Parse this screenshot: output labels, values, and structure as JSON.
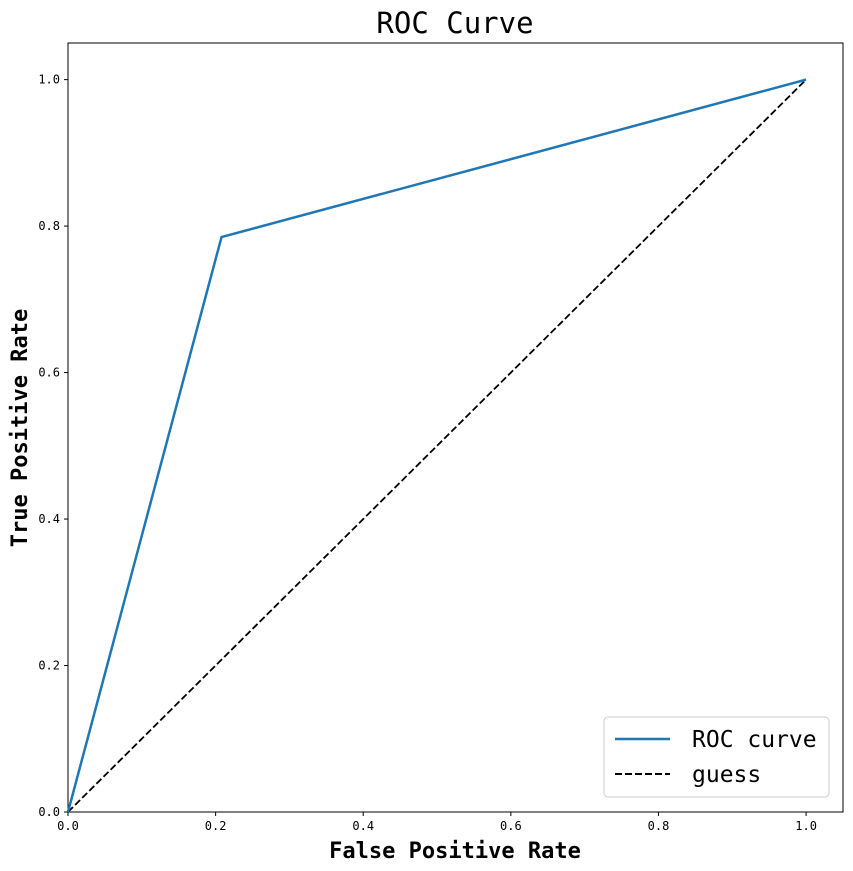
{
  "chart_data": {
    "type": "line",
    "title": "ROC Curve",
    "xlabel": "False Positive Rate",
    "ylabel": "True Positive Rate",
    "xlim": [
      0.0,
      1.05
    ],
    "ylim": [
      0.0,
      1.05
    ],
    "xticks": [
      "0.0",
      "0.2",
      "0.4",
      "0.6",
      "0.8",
      "1.0"
    ],
    "yticks": [
      "0.0",
      "0.2",
      "0.4",
      "0.6",
      "0.8",
      "1.0"
    ],
    "grid": false,
    "legend_position": "lower-right",
    "series": [
      {
        "name": "ROC curve",
        "color": "#1f77b4",
        "style": "solid",
        "x": [
          0.0,
          0.208,
          1.0
        ],
        "y": [
          0.0,
          0.785,
          1.0
        ]
      },
      {
        "name": "guess",
        "color": "#000000",
        "style": "dashed",
        "x": [
          0.0,
          1.0
        ],
        "y": [
          0.0,
          1.0
        ]
      }
    ]
  }
}
